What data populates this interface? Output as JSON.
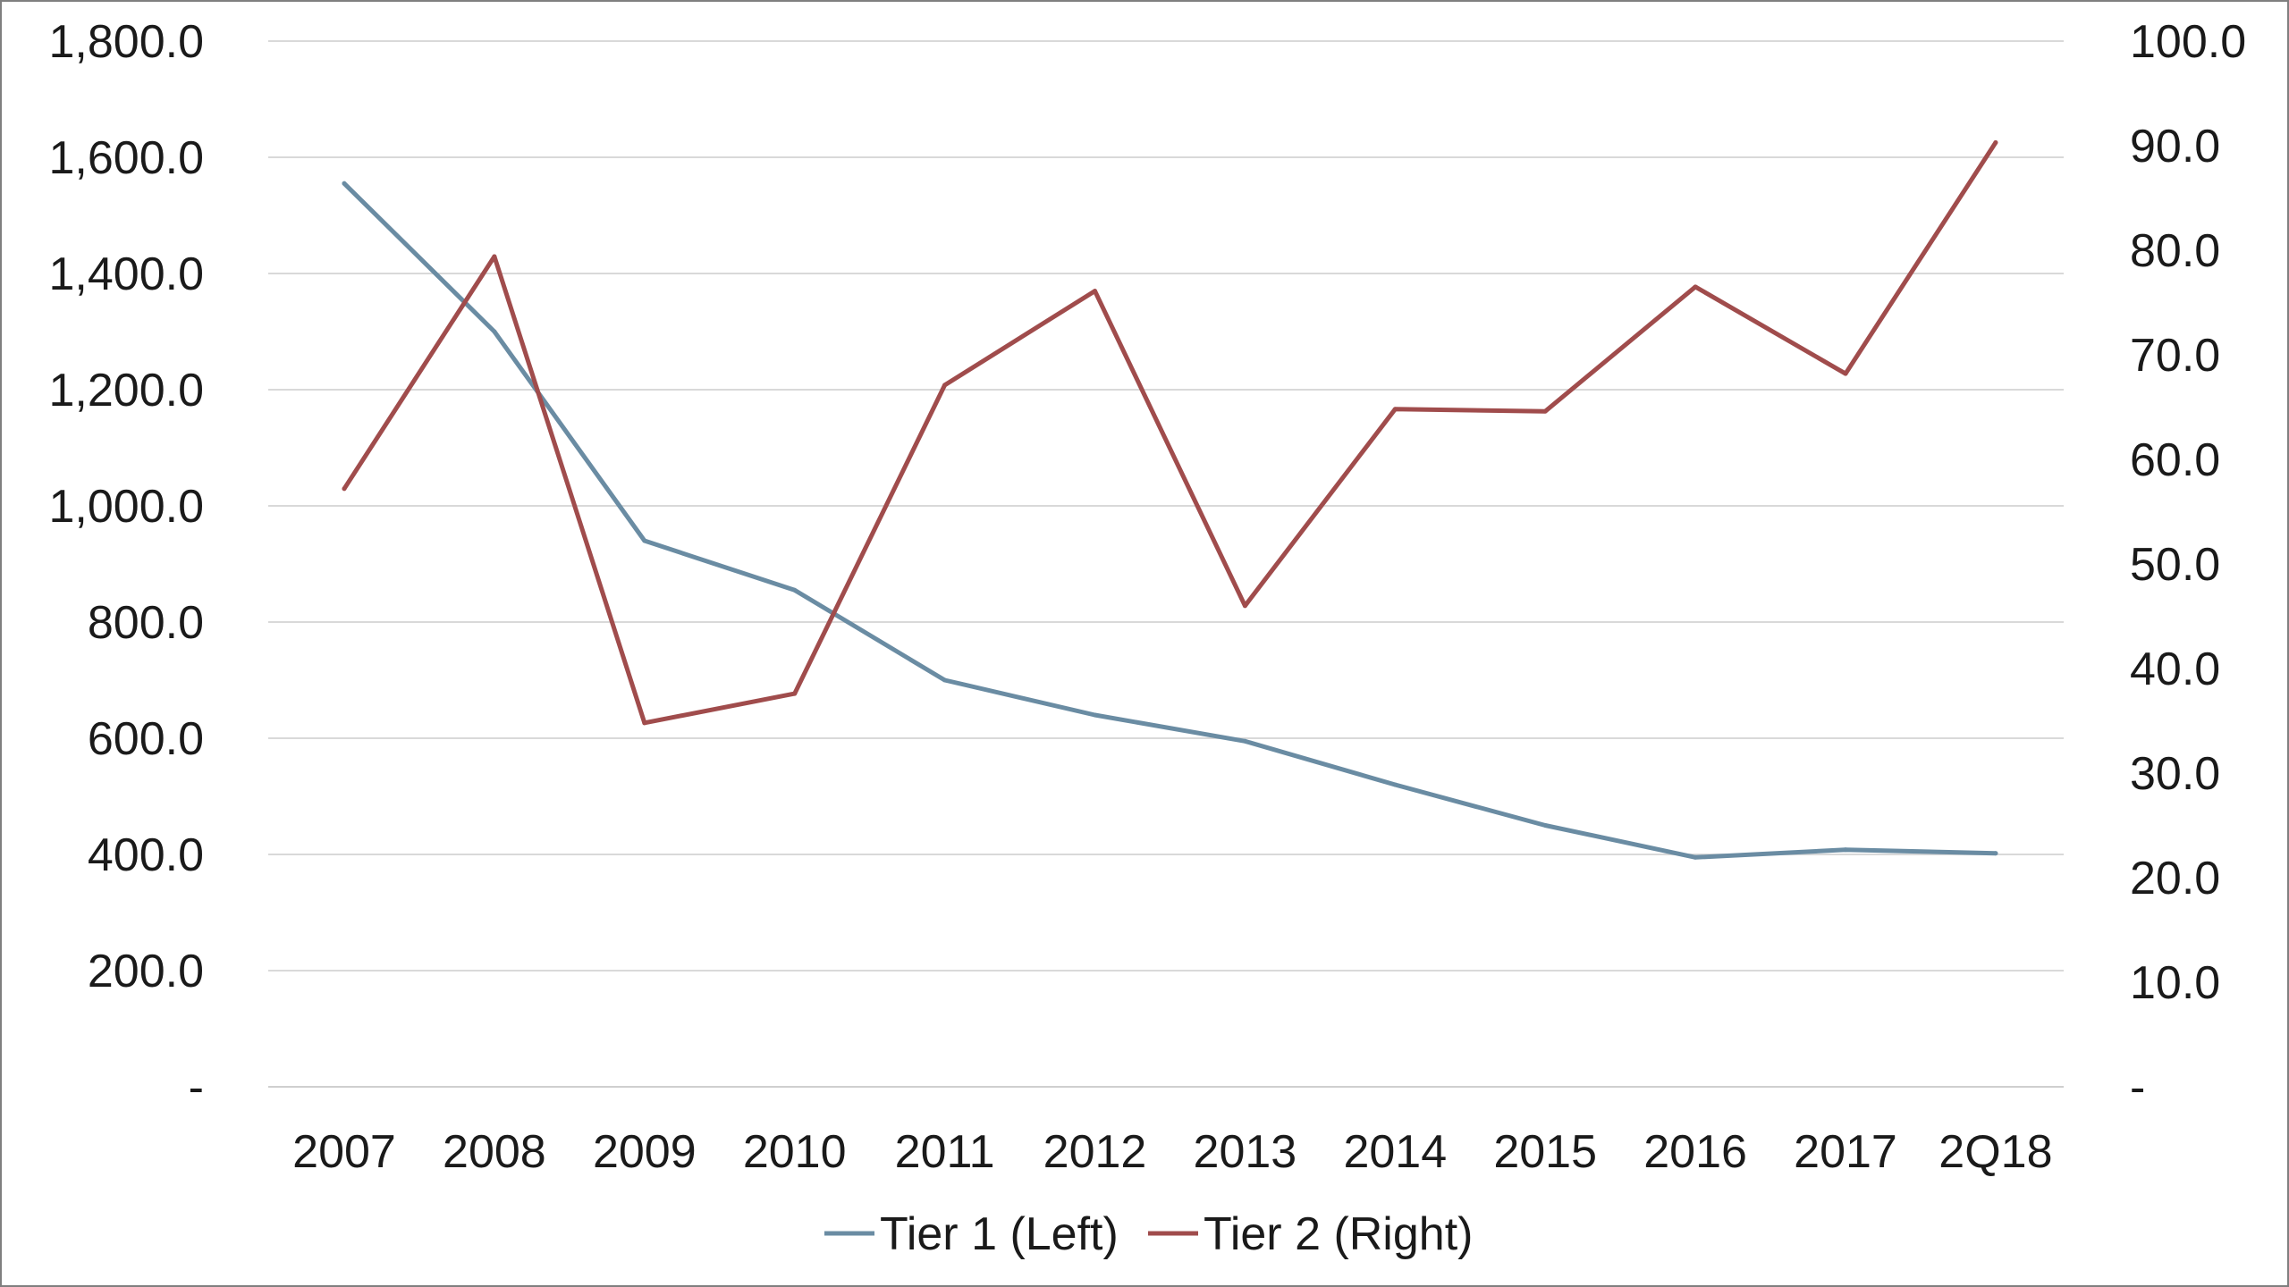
{
  "chart_data": {
    "type": "line",
    "categories": [
      "2007",
      "2008",
      "2009",
      "2010",
      "2011",
      "2012",
      "2013",
      "2014",
      "2015",
      "2016",
      "2017",
      "2Q18"
    ],
    "series": [
      {
        "name": "Tier 1 (Left)",
        "axis": "left",
        "color": "#6a8ca3",
        "values": [
          1555,
          1300,
          940,
          855,
          700,
          640,
          595,
          520,
          450,
          395,
          408,
          402
        ]
      },
      {
        "name": "Tier 2 (Right)",
        "axis": "right",
        "color": "#a04c4c",
        "values": [
          57.2,
          79.4,
          34.8,
          37.6,
          67.1,
          76.1,
          46.0,
          64.8,
          64.6,
          76.5,
          68.2,
          90.3
        ]
      }
    ],
    "left_axis": {
      "ylim": [
        0,
        1800
      ],
      "ticks": [
        {
          "value": 0,
          "label": "-"
        },
        {
          "value": 200,
          "label": "200.0"
        },
        {
          "value": 400,
          "label": "400.0"
        },
        {
          "value": 600,
          "label": "600.0"
        },
        {
          "value": 800,
          "label": "800.0"
        },
        {
          "value": 1000,
          "label": "1,000.0"
        },
        {
          "value": 1200,
          "label": "1,200.0"
        },
        {
          "value": 1400,
          "label": "1,400.0"
        },
        {
          "value": 1600,
          "label": "1,600.0"
        },
        {
          "value": 1800,
          "label": "1,800.0"
        }
      ]
    },
    "right_axis": {
      "ylim": [
        0,
        100
      ],
      "ticks": [
        {
          "value": 0,
          "label": "-"
        },
        {
          "value": 10,
          "label": "10.0"
        },
        {
          "value": 20,
          "label": "20.0"
        },
        {
          "value": 30,
          "label": "30.0"
        },
        {
          "value": 40,
          "label": "40.0"
        },
        {
          "value": 50,
          "label": "50.0"
        },
        {
          "value": 60,
          "label": "60.0"
        },
        {
          "value": 70,
          "label": "70.0"
        },
        {
          "value": 80,
          "label": "80.0"
        },
        {
          "value": 90,
          "label": "90.0"
        },
        {
          "value": 100,
          "label": "100.0"
        }
      ]
    },
    "grid": true,
    "legend_position": "bottom-center"
  }
}
